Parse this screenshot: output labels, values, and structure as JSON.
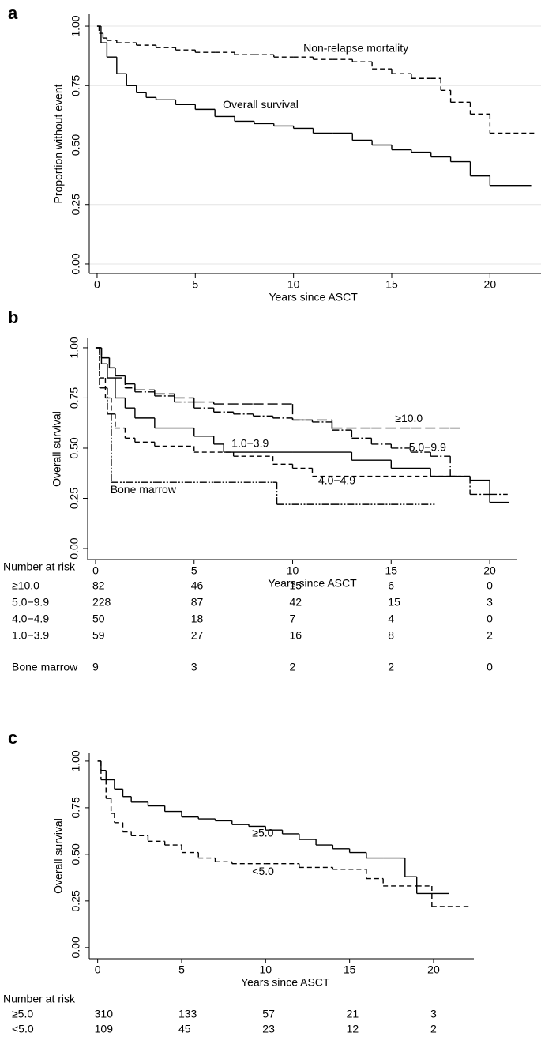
{
  "chart_data": [
    {
      "type": "step",
      "label": "a",
      "xlabel": "Years since ASCT",
      "ylabel": "Proportion without event",
      "xlim": [
        -0.4,
        22.6
      ],
      "ylim": [
        -0.04,
        1.05
      ],
      "xticks": [
        0,
        5,
        10,
        15,
        20
      ],
      "yticks": [
        {
          "value": 0,
          "label": "0.00"
        },
        0.25,
        {
          "value": 0.5,
          "label": "0.50"
        },
        0.75,
        {
          "value": 1,
          "label": "1.00"
        }
      ],
      "grid": true,
      "series": [
        {
          "name": "Non-relapse mortality",
          "color": "#000000",
          "dash": "dash",
          "x": [
            0,
            0.1,
            0.3,
            0.5,
            1,
            2,
            3,
            4,
            5,
            6,
            7,
            8,
            9,
            10,
            11,
            12,
            13,
            14,
            15,
            16,
            17,
            17.5,
            18,
            19,
            20,
            22.3
          ],
          "values": [
            1,
            0.97,
            0.95,
            0.94,
            0.93,
            0.92,
            0.91,
            0.9,
            0.89,
            0.89,
            0.88,
            0.88,
            0.87,
            0.87,
            0.86,
            0.86,
            0.85,
            0.82,
            0.8,
            0.78,
            0.78,
            0.73,
            0.68,
            0.63,
            0.55,
            0.55
          ]
        },
        {
          "name": "Overall survival",
          "color": "#000000",
          "dash": "solid",
          "x": [
            0,
            0.2,
            0.5,
            1,
            1.5,
            2,
            2.5,
            3,
            4,
            5,
            6,
            7,
            8,
            9,
            10,
            11,
            12,
            13,
            14,
            15,
            16,
            17,
            18,
            19,
            20,
            22.1
          ],
          "values": [
            1,
            0.93,
            0.87,
            0.8,
            0.75,
            0.72,
            0.7,
            0.69,
            0.67,
            0.65,
            0.62,
            0.6,
            0.59,
            0.58,
            0.57,
            0.55,
            0.55,
            0.52,
            0.5,
            0.48,
            0.47,
            0.45,
            0.43,
            0.37,
            0.33,
            0.33
          ]
        }
      ]
    },
    {
      "type": "step",
      "label": "b",
      "xlabel": "Years since ASCT",
      "ylabel": "Overall survival",
      "xlim": [
        -0.4,
        21.4
      ],
      "ylim": [
        -0.055,
        1.047
      ],
      "xticks": [
        0,
        5,
        10,
        15,
        20
      ],
      "yticks": [
        {
          "value": 0,
          "label": "0.00"
        },
        0.25,
        {
          "value": 0.5,
          "label": "0.50"
        },
        0.75,
        {
          "value": 1,
          "label": "1.00"
        }
      ],
      "grid": false,
      "series": [
        {
          "name": "≥10.0",
          "color": "#000000",
          "dash": "longdash",
          "x": [
            0,
            0.3,
            0.7,
            1,
            1.5,
            2,
            3,
            4,
            5,
            6,
            8,
            10,
            10.5,
            12,
            14,
            16,
            18,
            18.5
          ],
          "values": [
            1,
            0.95,
            0.9,
            0.86,
            0.82,
            0.79,
            0.77,
            0.75,
            0.73,
            0.72,
            0.72,
            0.64,
            0.64,
            0.6,
            0.6,
            0.6,
            0.6,
            0.6
          ]
        },
        {
          "name": "5.0−9.9",
          "color": "#000000",
          "dash": "dashdot",
          "x": [
            0,
            0.3,
            0.7,
            1,
            1.5,
            2,
            3,
            4,
            5,
            6,
            7,
            8,
            9,
            10,
            11,
            12,
            13,
            14,
            15,
            16,
            17,
            18,
            19,
            20,
            20.9
          ],
          "values": [
            1,
            0.95,
            0.9,
            0.85,
            0.8,
            0.78,
            0.76,
            0.73,
            0.7,
            0.68,
            0.67,
            0.66,
            0.65,
            0.64,
            0.63,
            0.59,
            0.55,
            0.52,
            0.5,
            0.48,
            0.46,
            0.36,
            0.27,
            0.27,
            0.27
          ]
        },
        {
          "name": "4.0−4.9",
          "color": "#000000",
          "dash": "dash",
          "x": [
            0,
            0.2,
            0.5,
            0.8,
            1,
            1.5,
            2,
            3,
            5,
            7,
            9,
            10,
            11,
            13,
            15,
            18,
            18.5
          ],
          "values": [
            1,
            0.85,
            0.75,
            0.67,
            0.6,
            0.55,
            0.53,
            0.51,
            0.48,
            0.46,
            0.42,
            0.4,
            0.36,
            0.36,
            0.36,
            0.36,
            0.36
          ]
        },
        {
          "name": "1.0−3.9",
          "color": "#000000",
          "dash": "solid",
          "x": [
            0,
            0.3,
            0.6,
            1,
            1.5,
            2,
            3,
            5,
            6,
            6.5,
            8,
            10,
            12,
            13,
            15,
            17,
            19,
            20,
            21
          ],
          "values": [
            1,
            0.92,
            0.85,
            0.75,
            0.7,
            0.65,
            0.6,
            0.56,
            0.52,
            0.48,
            0.48,
            0.48,
            0.48,
            0.44,
            0.4,
            0.36,
            0.34,
            0.23,
            0.23
          ]
        },
        {
          "name": "Bone marrow",
          "color": "#000000",
          "dash": "dashdotdot",
          "x": [
            0,
            0.2,
            0.6,
            0.8,
            3,
            6,
            9,
            9.2,
            12,
            15,
            17.2
          ],
          "values": [
            1,
            0.8,
            0.67,
            0.33,
            0.33,
            0.33,
            0.33,
            0.22,
            0.22,
            0.22,
            0.22
          ]
        }
      ],
      "risk_table": {
        "title": "Number at risk",
        "rows": [
          {
            "label": "≥10.0",
            "values": [
              82,
              46,
              15,
              6,
              0
            ]
          },
          {
            "label": "5.0−9.9",
            "values": [
              228,
              87,
              42,
              15,
              3
            ]
          },
          {
            "label": "4.0−4.9",
            "values": [
              50,
              18,
              7,
              4,
              0
            ]
          },
          {
            "label": "1.0−3.9",
            "values": [
              59,
              27,
              16,
              8,
              2
            ]
          },
          {
            "label": "Bone marrow",
            "values": [
              9,
              3,
              2,
              2,
              0
            ]
          }
        ]
      }
    },
    {
      "type": "step",
      "label": "c",
      "xlabel": "Years since ASCT",
      "ylabel": "Overall survival",
      "xlim": [
        -0.5,
        22.4
      ],
      "ylim": [
        -0.06,
        1.042
      ],
      "xticks": [
        0,
        5,
        10,
        15,
        20
      ],
      "yticks": [
        {
          "value": 0,
          "label": "0.00"
        },
        0.25,
        {
          "value": 0.5,
          "label": "0.50"
        },
        0.75,
        {
          "value": 1,
          "label": "1.00"
        }
      ],
      "grid": false,
      "series": [
        {
          "name": "≥5.0",
          "color": "#000000",
          "dash": "solid",
          "x": [
            0,
            0.2,
            0.5,
            1,
            1.5,
            2,
            3,
            4,
            5,
            6,
            7,
            8,
            9,
            10,
            11,
            12,
            13,
            14,
            15,
            16,
            17,
            18,
            18.3,
            19,
            20,
            20.9
          ],
          "values": [
            1,
            0.95,
            0.9,
            0.85,
            0.81,
            0.78,
            0.76,
            0.73,
            0.7,
            0.69,
            0.68,
            0.66,
            0.65,
            0.63,
            0.61,
            0.58,
            0.55,
            0.53,
            0.51,
            0.48,
            0.48,
            0.48,
            0.38,
            0.29,
            0.29,
            0.29
          ]
        },
        {
          "name": "<5.0",
          "color": "#000000",
          "dash": "dash",
          "x": [
            0,
            0.2,
            0.5,
            0.8,
            1,
            1.5,
            2,
            3,
            4,
            5,
            6,
            7,
            8,
            10,
            12,
            14,
            16,
            17,
            19,
            19.9,
            22.1
          ],
          "values": [
            1,
            0.9,
            0.8,
            0.72,
            0.67,
            0.62,
            0.6,
            0.57,
            0.55,
            0.51,
            0.48,
            0.46,
            0.45,
            0.45,
            0.43,
            0.42,
            0.37,
            0.33,
            0.33,
            0.22,
            0.22
          ]
        }
      ],
      "risk_table": {
        "title": "Number at risk",
        "rows": [
          {
            "label": "≥5.0",
            "values": [
              310,
              133,
              57,
              21,
              3
            ]
          },
          {
            "label": "<5.0",
            "values": [
              109,
              45,
              23,
              12,
              2
            ]
          }
        ]
      }
    }
  ]
}
